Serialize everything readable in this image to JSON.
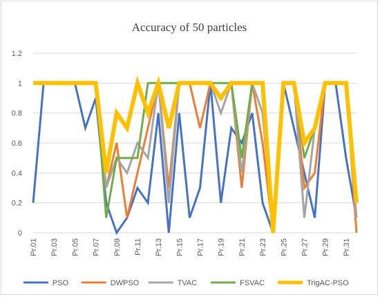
{
  "chart_data": {
    "type": "line",
    "title": "Accuracy of 50 particles",
    "xlabel": "",
    "ylabel": "",
    "ylim": [
      0,
      1.2
    ],
    "yticks": [
      "0",
      "0.2",
      "0.4",
      "0.6",
      "0.8",
      "1",
      "1.2"
    ],
    "categories": [
      "Pr.01",
      "Pr.02",
      "Pr.03",
      "Pr.04",
      "Pr.05",
      "Pr.06",
      "Pr.07",
      "Pr.08",
      "Pr.09",
      "Pr.10",
      "Pr.11",
      "Pr.12",
      "Pr.13",
      "Pr.14",
      "Pr.15",
      "Pr.16",
      "Pr.17",
      "Pr.18",
      "Pr.19",
      "Pr.20",
      "Pr.21",
      "Pr.22",
      "Pr.23",
      "Pr.24",
      "Pr.25",
      "Pr.26",
      "Pr.27",
      "Pr.28",
      "Pr.29",
      "Pr.30",
      "Pr.31",
      "Pr.32"
    ],
    "xtick_labels": [
      "Pr.01",
      "Pr.03",
      "Pr.05",
      "Pr.07",
      "Pr.09",
      "Pr.11",
      "Pr.13",
      "Pr.15",
      "Pr.17",
      "Pr.19",
      "Pr.21",
      "Pr.23",
      "Pr.25",
      "Pr.27",
      "Pr.29",
      "Pr.31"
    ],
    "grid": true,
    "legend_position": "bottom",
    "series": [
      {
        "name": "PSO",
        "color": "#4472c4",
        "width": 3,
        "values": [
          0.2,
          1,
          1,
          1,
          1,
          0.7,
          0.9,
          0.2,
          0,
          0.1,
          0.3,
          0.2,
          0.8,
          0,
          0.8,
          0.1,
          0.3,
          1,
          0.2,
          0.7,
          0.6,
          0.8,
          0.2,
          0,
          1,
          0.7,
          0.4,
          0.1,
          1,
          1,
          0.5,
          0.1
        ]
      },
      {
        "name": "DWPSO",
        "color": "#ed7d31",
        "width": 3,
        "values": [
          1,
          1,
          1,
          1,
          1,
          1,
          1,
          0.3,
          0.6,
          0.1,
          0.4,
          0.7,
          1,
          0.3,
          1,
          1,
          0.7,
          1,
          0.9,
          1,
          0.3,
          1,
          0.6,
          0,
          1,
          1,
          0.3,
          0.4,
          1,
          1,
          1,
          0
        ]
      },
      {
        "name": "TVAC",
        "color": "#a5a5a5",
        "width": 3,
        "values": [
          1,
          1,
          1,
          1,
          1,
          1,
          1,
          0.3,
          0.5,
          0.4,
          0.6,
          0.5,
          1,
          0.2,
          1,
          1,
          1,
          1,
          0.8,
          1,
          0.4,
          1,
          0.8,
          0,
          1,
          1,
          0.1,
          0.7,
          1,
          1,
          1,
          0.1
        ]
      },
      {
        "name": "FSVAC",
        "color": "#70ad47",
        "width": 3,
        "values": [
          1,
          1,
          1,
          1,
          1,
          1,
          1,
          0.1,
          0.5,
          0.5,
          0.5,
          1,
          1,
          1,
          1,
          1,
          1,
          1,
          1,
          1,
          0.5,
          1,
          1,
          0,
          1,
          1,
          0.5,
          0.7,
          1,
          1,
          1,
          0.2
        ]
      },
      {
        "name": "TrigAC-PSO",
        "color": "#ffc000",
        "width": 6,
        "values": [
          1,
          1,
          1,
          1,
          1,
          1,
          1,
          0.4,
          0.8,
          0.7,
          1,
          0.8,
          1,
          0.7,
          1,
          1,
          1,
          1,
          0.9,
          1,
          1,
          1,
          1,
          0,
          1,
          1,
          0.6,
          0.7,
          1,
          1,
          1,
          0.2
        ]
      }
    ]
  }
}
